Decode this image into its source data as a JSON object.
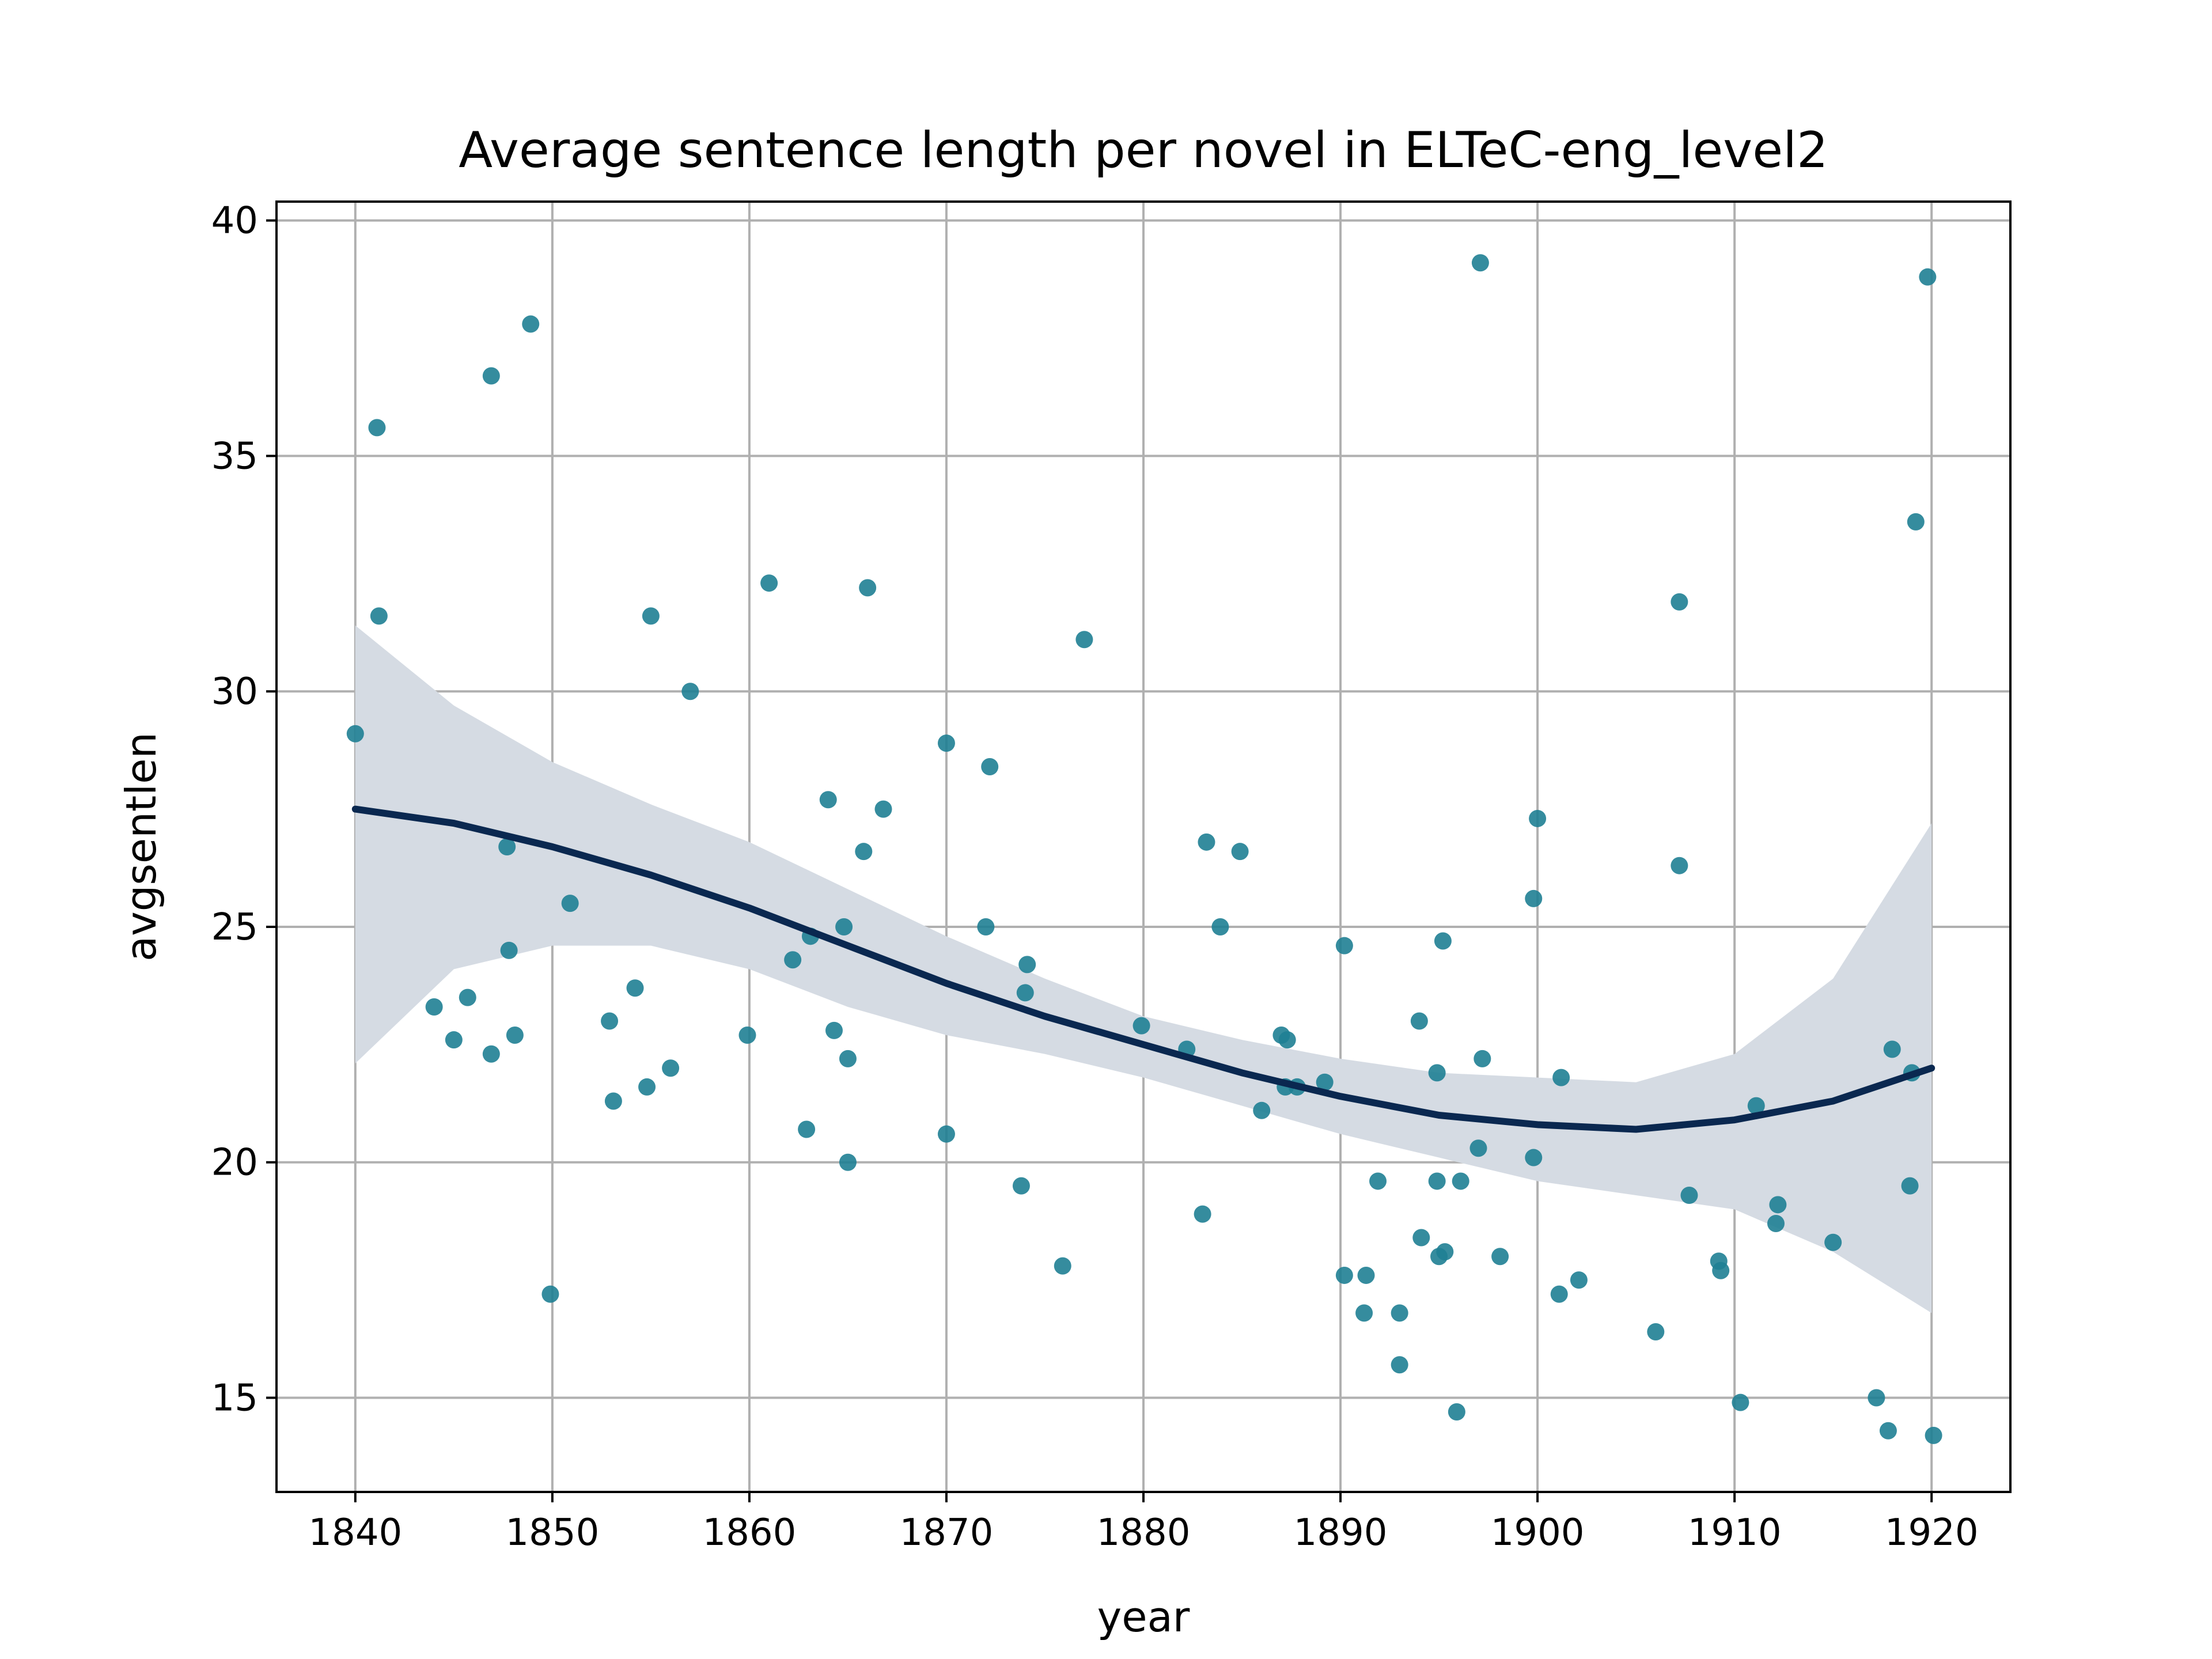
{
  "chart_data": {
    "type": "scatter",
    "title": "Average sentence length per novel in ELTeC-eng_level2",
    "xlabel": "year",
    "ylabel": "avgsentlen",
    "xlim": [
      1836,
      1924
    ],
    "ylim": [
      13,
      40.4
    ],
    "x_ticks": [
      1840,
      1850,
      1860,
      1870,
      1880,
      1890,
      1900,
      1910,
      1920
    ],
    "y_ticks": [
      15,
      20,
      25,
      30,
      35,
      40
    ],
    "grid": true,
    "legend": "none",
    "colors": {
      "points": "#1f7f94",
      "fit_line": "#0a2850",
      "ci_band": "#d5dbe3",
      "grid": "#b0b0b0"
    },
    "points": [
      [
        1840.0,
        29.1
      ],
      [
        1841.1,
        35.6
      ],
      [
        1841.2,
        31.6
      ],
      [
        1844.0,
        23.3
      ],
      [
        1845.0,
        22.6
      ],
      [
        1845.7,
        23.5
      ],
      [
        1846.9,
        36.7
      ],
      [
        1846.9,
        22.3
      ],
      [
        1847.7,
        26.7
      ],
      [
        1847.8,
        24.5
      ],
      [
        1848.1,
        22.7
      ],
      [
        1848.9,
        37.8
      ],
      [
        1849.9,
        17.2
      ],
      [
        1850.9,
        25.5
      ],
      [
        1852.9,
        23.0
      ],
      [
        1853.1,
        21.3
      ],
      [
        1854.2,
        23.7
      ],
      [
        1854.8,
        21.6
      ],
      [
        1855.0,
        31.6
      ],
      [
        1856.0,
        22.0
      ],
      [
        1857.0,
        30.0
      ],
      [
        1859.9,
        22.7
      ],
      [
        1861.0,
        32.3
      ],
      [
        1862.2,
        24.3
      ],
      [
        1862.9,
        20.7
      ],
      [
        1863.1,
        24.8
      ],
      [
        1864.0,
        27.7
      ],
      [
        1864.3,
        22.8
      ],
      [
        1864.8,
        25.0
      ],
      [
        1865.0,
        22.2
      ],
      [
        1865.0,
        20.0
      ],
      [
        1865.8,
        26.6
      ],
      [
        1866.0,
        32.2
      ],
      [
        1866.8,
        27.5
      ],
      [
        1870.0,
        28.9
      ],
      [
        1870.0,
        20.6
      ],
      [
        1872.0,
        25.0
      ],
      [
        1872.2,
        28.4
      ],
      [
        1873.8,
        19.5
      ],
      [
        1874.0,
        23.6
      ],
      [
        1874.1,
        24.2
      ],
      [
        1875.9,
        17.8
      ],
      [
        1877.0,
        31.1
      ],
      [
        1879.9,
        22.9
      ],
      [
        1882.2,
        22.4
      ],
      [
        1883.0,
        18.9
      ],
      [
        1883.2,
        26.8
      ],
      [
        1883.9,
        25.0
      ],
      [
        1884.9,
        26.6
      ],
      [
        1886.0,
        21.1
      ],
      [
        1887.0,
        22.7
      ],
      [
        1887.2,
        21.6
      ],
      [
        1887.3,
        22.6
      ],
      [
        1887.8,
        21.6
      ],
      [
        1889.2,
        21.7
      ],
      [
        1890.2,
        24.6
      ],
      [
        1890.2,
        17.6
      ],
      [
        1891.2,
        16.8
      ],
      [
        1891.3,
        17.6
      ],
      [
        1891.9,
        19.6
      ],
      [
        1893.0,
        16.8
      ],
      [
        1893.0,
        15.7
      ],
      [
        1894.0,
        23.0
      ],
      [
        1894.1,
        18.4
      ],
      [
        1894.9,
        21.9
      ],
      [
        1894.9,
        19.6
      ],
      [
        1895.0,
        18.0
      ],
      [
        1895.2,
        24.7
      ],
      [
        1895.3,
        18.1
      ],
      [
        1895.9,
        14.7
      ],
      [
        1896.1,
        19.6
      ],
      [
        1897.0,
        20.3
      ],
      [
        1897.1,
        39.1
      ],
      [
        1897.2,
        22.2
      ],
      [
        1898.1,
        18.0
      ],
      [
        1899.8,
        20.1
      ],
      [
        1899.8,
        25.6
      ],
      [
        1900.0,
        27.3
      ],
      [
        1901.1,
        17.2
      ],
      [
        1901.2,
        21.8
      ],
      [
        1902.1,
        17.5
      ],
      [
        1906.0,
        16.4
      ],
      [
        1907.2,
        31.9
      ],
      [
        1907.2,
        26.3
      ],
      [
        1907.7,
        19.3
      ],
      [
        1909.2,
        17.9
      ],
      [
        1909.3,
        17.7
      ],
      [
        1910.3,
        14.9
      ],
      [
        1911.1,
        21.2
      ],
      [
        1912.1,
        18.7
      ],
      [
        1912.2,
        19.1
      ],
      [
        1915.0,
        18.3
      ],
      [
        1917.2,
        15.0
      ],
      [
        1917.8,
        14.3
      ],
      [
        1918.0,
        22.4
      ],
      [
        1918.9,
        19.5
      ],
      [
        1919.0,
        21.9
      ],
      [
        1919.2,
        33.6
      ],
      [
        1919.8,
        38.8
      ],
      [
        1920.1,
        14.2
      ]
    ],
    "fit_line": [
      [
        1840,
        27.5
      ],
      [
        1845,
        27.2
      ],
      [
        1850,
        26.7
      ],
      [
        1855,
        26.1
      ],
      [
        1860,
        25.4
      ],
      [
        1865,
        24.6
      ],
      [
        1870,
        23.8
      ],
      [
        1875,
        23.1
      ],
      [
        1880,
        22.5
      ],
      [
        1885,
        21.9
      ],
      [
        1890,
        21.4
      ],
      [
        1895,
        21.0
      ],
      [
        1900,
        20.8
      ],
      [
        1905,
        20.7
      ],
      [
        1910,
        20.9
      ],
      [
        1915,
        21.3
      ],
      [
        1920,
        22.0
      ]
    ],
    "ci_upper": [
      [
        1840,
        31.4
      ],
      [
        1845,
        29.7
      ],
      [
        1850,
        28.5
      ],
      [
        1855,
        27.6
      ],
      [
        1860,
        26.8
      ],
      [
        1865,
        25.8
      ],
      [
        1870,
        24.8
      ],
      [
        1875,
        23.9
      ],
      [
        1880,
        23.1
      ],
      [
        1885,
        22.6
      ],
      [
        1890,
        22.2
      ],
      [
        1895,
        21.9
      ],
      [
        1900,
        21.8
      ],
      [
        1905,
        21.7
      ],
      [
        1910,
        22.3
      ],
      [
        1915,
        23.9
      ],
      [
        1920,
        27.2
      ]
    ],
    "ci_lower": [
      [
        1840,
        22.1
      ],
      [
        1845,
        24.1
      ],
      [
        1850,
        24.6
      ],
      [
        1855,
        24.6
      ],
      [
        1860,
        24.1
      ],
      [
        1865,
        23.3
      ],
      [
        1870,
        22.7
      ],
      [
        1875,
        22.3
      ],
      [
        1880,
        21.8
      ],
      [
        1885,
        21.2
      ],
      [
        1890,
        20.6
      ],
      [
        1895,
        20.1
      ],
      [
        1900,
        19.6
      ],
      [
        1905,
        19.3
      ],
      [
        1910,
        19.0
      ],
      [
        1915,
        18.1
      ],
      [
        1920,
        16.8
      ]
    ]
  }
}
